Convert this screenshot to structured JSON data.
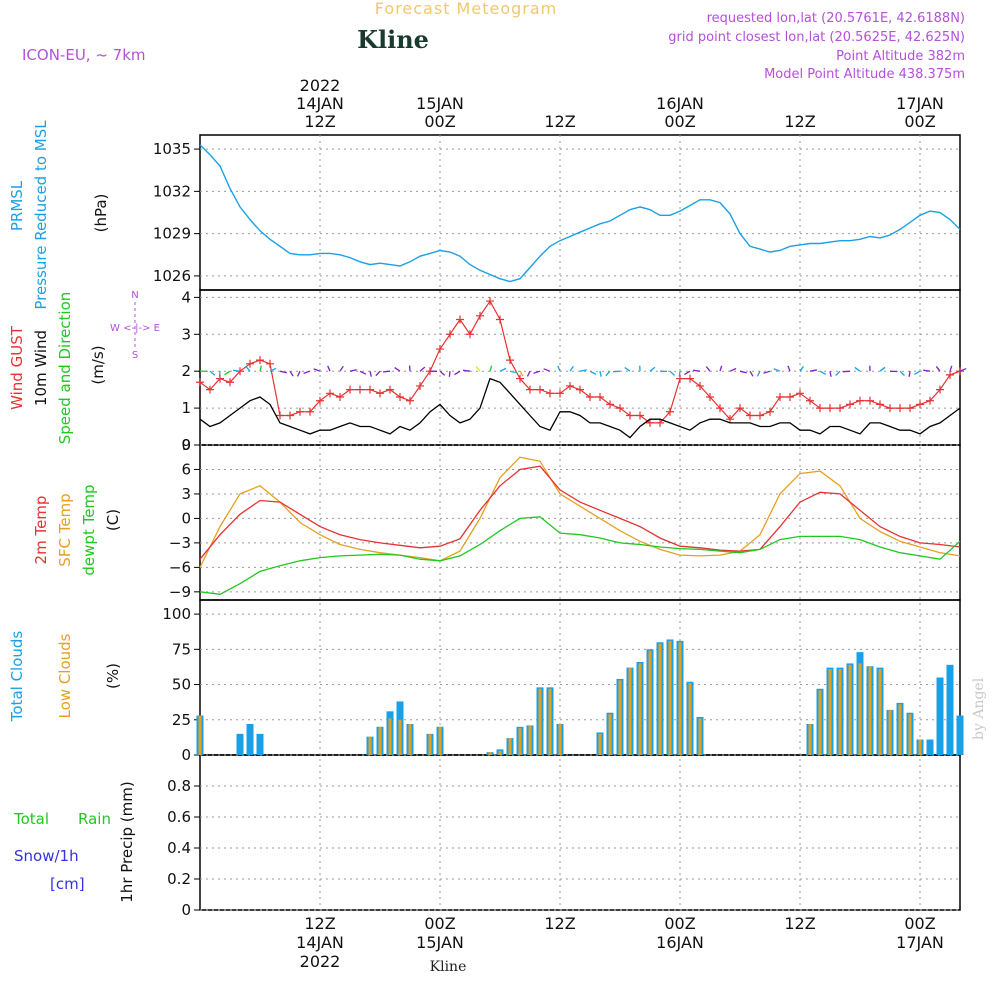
{
  "header": {
    "title": "Forecast Meteogram",
    "location": "Kline",
    "model": "ICON-EU, ~ 7km",
    "requested": "requested lon,lat (20.5761E, 42.6188N)",
    "gridpoint": "grid point closest lon,lat (20.5625E, 42.625N)",
    "point_alt": "Point Altitude 382m",
    "model_alt": "Model Point Altitude 438.375m",
    "bottom_location": "Kline",
    "watermark": "by Angel"
  },
  "colors": {
    "pressure": "#1aa0e6",
    "gust": "#e63232",
    "wind10": "#000000",
    "temp2m": "#e63232",
    "sfctemp": "#e6a020",
    "dewpt": "#20c820",
    "total_clouds": "#1aa0e6",
    "low_clouds": "#e6a020",
    "rain": "#20c820",
    "snow": "#3232e6",
    "arrow_purple": "#8020c8"
  },
  "time_axis": {
    "top_labels": [
      {
        "l1": "2022",
        "l2": "14JAN",
        "l3": "12Z",
        "h": 12
      },
      {
        "l1": "",
        "l2": "15JAN",
        "l3": "00Z",
        "h": 24
      },
      {
        "l1": "",
        "l2": "",
        "l3": "12Z",
        "h": 36
      },
      {
        "l1": "",
        "l2": "16JAN",
        "l3": "00Z",
        "h": 48
      },
      {
        "l1": "",
        "l2": "",
        "l3": "12Z",
        "h": 60
      },
      {
        "l1": "",
        "l2": "17JAN",
        "l3": "00Z",
        "h": 72
      }
    ],
    "bottom_labels": [
      {
        "l1": "12Z",
        "l2": "14JAN",
        "l3": "2022",
        "h": 12
      },
      {
        "l1": "00Z",
        "l2": "15JAN",
        "l3": "",
        "h": 24
      },
      {
        "l1": "12Z",
        "l2": "",
        "l3": "",
        "h": 36
      },
      {
        "l1": "00Z",
        "l2": "16JAN",
        "l3": "",
        "h": 48
      },
      {
        "l1": "12Z",
        "l2": "",
        "l3": "",
        "h": 60
      },
      {
        "l1": "00Z",
        "l2": "17JAN",
        "l3": "",
        "h": 72
      }
    ]
  },
  "panel_labels": {
    "pressure": {
      "l1": "PRMSL",
      "l2": "Pressure Reduced to MSL",
      "unit": "(hPa)"
    },
    "wind": {
      "l1": "Wind GUST",
      "l2": "10m Wind",
      "l3": "Speed and Direction",
      "unit": "(m/s)",
      "compass_n": "N",
      "compass_s": "S",
      "compass_we": "W <-|-> E"
    },
    "temp": {
      "l1": "2m Temp",
      "l2": "SFC Temp",
      "l3": "dewpt Temp",
      "unit": "(C)"
    },
    "clouds": {
      "l1": "Total Clouds",
      "l2": "Low Clouds",
      "unit": "(%)"
    },
    "precip": {
      "l1": "Total",
      "l1b": "Rain",
      "l2": "Snow/1h",
      "l3": "[cm]",
      "unit": "1hr Precip (mm)"
    }
  },
  "chart_data": [
    {
      "type": "line",
      "name": "pressure",
      "ylim": [
        1025,
        1036
      ],
      "yticks": [
        1026,
        1029,
        1032,
        1035
      ],
      "xlim": [
        0,
        76
      ],
      "series": [
        {
          "name": "PRMSL",
          "x": [
            0,
            1,
            2,
            3,
            4,
            5,
            6,
            7,
            8,
            9,
            10,
            11,
            12,
            13,
            14,
            15,
            16,
            17,
            18,
            19,
            20,
            21,
            22,
            23,
            24,
            25,
            26,
            27,
            28,
            29,
            30,
            31,
            32,
            33,
            34,
            35,
            36,
            37,
            38,
            39,
            40,
            41,
            42,
            43,
            44,
            45,
            46,
            47,
            48,
            49,
            50,
            51,
            52,
            53,
            54,
            55,
            56,
            57,
            58,
            59,
            60,
            61,
            62,
            63,
            64,
            65,
            66,
            67,
            68,
            69,
            70,
            71,
            72,
            73,
            74,
            75,
            76
          ],
          "values": [
            1035.3,
            1034.6,
            1033.8,
            1032.2,
            1030.9,
            1030.0,
            1029.2,
            1028.6,
            1028.1,
            1027.6,
            1027.5,
            1027.5,
            1027.6,
            1027.6,
            1027.5,
            1027.3,
            1027.0,
            1026.8,
            1026.9,
            1026.8,
            1026.7,
            1027.0,
            1027.4,
            1027.6,
            1027.8,
            1027.7,
            1027.4,
            1026.8,
            1026.4,
            1026.1,
            1025.8,
            1025.6,
            1025.8,
            1026.6,
            1027.4,
            1028.1,
            1028.5,
            1028.8,
            1029.1,
            1029.4,
            1029.7,
            1029.9,
            1030.3,
            1030.7,
            1030.9,
            1030.7,
            1030.3,
            1030.3,
            1030.6,
            1031.0,
            1031.4,
            1031.4,
            1031.2,
            1030.4,
            1029.0,
            1028.1,
            1027.9,
            1027.7,
            1027.8,
            1028.1,
            1028.2,
            1028.3,
            1028.3,
            1028.4,
            1028.5,
            1028.5,
            1028.6,
            1028.8,
            1028.7,
            1028.9,
            1029.3,
            1029.8,
            1030.3,
            1030.6,
            1030.5,
            1030.0,
            1029.3
          ]
        }
      ]
    },
    {
      "type": "line",
      "name": "wind",
      "ylim": [
        0,
        4.2
      ],
      "yticks": [
        0,
        1,
        2,
        3,
        4
      ],
      "xlim": [
        0,
        76
      ],
      "series": [
        {
          "name": "Wind GUST",
          "x": [
            0,
            1,
            2,
            3,
            4,
            5,
            6,
            7,
            8,
            9,
            10,
            11,
            12,
            13,
            14,
            15,
            16,
            17,
            18,
            19,
            20,
            21,
            22,
            23,
            24,
            25,
            26,
            27,
            28,
            29,
            30,
            31,
            32,
            33,
            34,
            35,
            36,
            37,
            38,
            39,
            40,
            41,
            42,
            43,
            44,
            45,
            46,
            47,
            48,
            49,
            50,
            51,
            52,
            53,
            54,
            55,
            56,
            57,
            58,
            59,
            60,
            61,
            62,
            63,
            64,
            65,
            66,
            67,
            68,
            69,
            70,
            71,
            72,
            73,
            74,
            75,
            76
          ],
          "values": [
            1.7,
            1.5,
            1.8,
            1.7,
            2.0,
            2.2,
            2.3,
            2.2,
            0.8,
            0.8,
            0.9,
            0.9,
            1.2,
            1.4,
            1.3,
            1.5,
            1.5,
            1.5,
            1.4,
            1.5,
            1.3,
            1.2,
            1.6,
            2.0,
            2.6,
            3.0,
            3.4,
            3.0,
            3.5,
            3.9,
            3.4,
            2.3,
            1.8,
            1.5,
            1.5,
            1.4,
            1.4,
            1.6,
            1.5,
            1.3,
            1.3,
            1.1,
            1.0,
            0.8,
            0.8,
            0.6,
            0.6,
            0.9,
            1.8,
            1.8,
            1.6,
            1.3,
            1.0,
            0.7,
            1.0,
            0.8,
            0.8,
            0.9,
            1.3,
            1.3,
            1.4,
            1.2,
            1.0,
            1.0,
            1.0,
            1.1,
            1.2,
            1.2,
            1.1,
            1.0,
            1.0,
            1.0,
            1.1,
            1.2,
            1.5,
            1.9,
            2.0
          ]
        },
        {
          "name": "10m Wind",
          "x": [
            0,
            1,
            2,
            3,
            4,
            5,
            6,
            7,
            8,
            9,
            10,
            11,
            12,
            13,
            14,
            15,
            16,
            17,
            18,
            19,
            20,
            21,
            22,
            23,
            24,
            25,
            26,
            27,
            28,
            29,
            30,
            31,
            32,
            33,
            34,
            35,
            36,
            37,
            38,
            39,
            40,
            41,
            42,
            43,
            44,
            45,
            46,
            47,
            48,
            49,
            50,
            51,
            52,
            53,
            54,
            55,
            56,
            57,
            58,
            59,
            60,
            61,
            62,
            63,
            64,
            65,
            66,
            67,
            68,
            69,
            70,
            71,
            72,
            73,
            74,
            75,
            76
          ],
          "values": [
            0.7,
            0.5,
            0.6,
            0.8,
            1.0,
            1.2,
            1.3,
            1.1,
            0.6,
            0.5,
            0.4,
            0.3,
            0.4,
            0.4,
            0.5,
            0.6,
            0.5,
            0.5,
            0.4,
            0.3,
            0.5,
            0.4,
            0.6,
            0.9,
            1.1,
            0.8,
            0.6,
            0.7,
            1.0,
            1.8,
            1.7,
            1.4,
            1.1,
            0.8,
            0.5,
            0.4,
            0.9,
            0.9,
            0.8,
            0.6,
            0.6,
            0.5,
            0.4,
            0.2,
            0.5,
            0.7,
            0.7,
            0.6,
            0.5,
            0.4,
            0.6,
            0.7,
            0.7,
            0.6,
            0.6,
            0.6,
            0.5,
            0.5,
            0.6,
            0.6,
            0.4,
            0.4,
            0.3,
            0.5,
            0.5,
            0.4,
            0.3,
            0.6,
            0.6,
            0.5,
            0.4,
            0.4,
            0.3,
            0.5,
            0.6,
            0.8,
            1.0
          ]
        }
      ]
    },
    {
      "type": "line",
      "name": "temperature",
      "ylim": [
        -10,
        9
      ],
      "yticks": [
        -9,
        -6,
        -3,
        0,
        3,
        6,
        9
      ],
      "xlim": [
        0,
        76
      ],
      "series": [
        {
          "name": "2m Temp",
          "x": [
            0,
            2,
            4,
            6,
            8,
            10,
            12,
            14,
            16,
            18,
            20,
            22,
            24,
            26,
            28,
            30,
            32,
            34,
            36,
            38,
            40,
            42,
            44,
            46,
            48,
            50,
            52,
            54,
            56,
            58,
            60,
            62,
            64,
            66,
            68,
            70,
            72,
            74,
            76
          ],
          "values": [
            -5,
            -2,
            0.5,
            2.2,
            2,
            0.5,
            -1,
            -2,
            -2.6,
            -3,
            -3.3,
            -3.6,
            -3.4,
            -2.5,
            1,
            4,
            6,
            6.4,
            3.5,
            2,
            1,
            0,
            -1,
            -2.4,
            -3.4,
            -3.6,
            -3.9,
            -4,
            -3.8,
            -1,
            2,
            3.2,
            3,
            1,
            -1,
            -2.2,
            -3,
            -3.2,
            -3.5
          ]
        },
        {
          "name": "SFC Temp",
          "x": [
            0,
            2,
            4,
            6,
            8,
            10,
            12,
            14,
            16,
            18,
            20,
            22,
            24,
            26,
            28,
            30,
            32,
            34,
            36,
            38,
            40,
            42,
            44,
            46,
            48,
            50,
            52,
            54,
            56,
            58,
            60,
            62,
            64,
            66,
            68,
            70,
            72,
            74,
            76
          ],
          "values": [
            -6,
            -1,
            3,
            4,
            2,
            -0.5,
            -2,
            -3.2,
            -3.8,
            -4.2,
            -4.5,
            -4.8,
            -5.2,
            -4,
            0,
            5,
            7.5,
            7,
            3,
            1.5,
            0,
            -1.5,
            -2.8,
            -3.8,
            -4.5,
            -4.6,
            -4.5,
            -4,
            -2,
            3,
            5.5,
            5.8,
            4,
            0,
            -1.6,
            -2.8,
            -3.5,
            -4.2,
            -4.6
          ]
        },
        {
          "name": "dewpt Temp",
          "x": [
            0,
            2,
            4,
            6,
            8,
            10,
            12,
            14,
            16,
            18,
            20,
            22,
            24,
            26,
            28,
            30,
            32,
            34,
            36,
            38,
            40,
            42,
            44,
            46,
            48,
            50,
            52,
            54,
            56,
            58,
            60,
            62,
            64,
            66,
            68,
            70,
            72,
            74,
            76
          ],
          "values": [
            -9,
            -9.3,
            -8,
            -6.5,
            -5.8,
            -5.2,
            -4.8,
            -4.6,
            -4.5,
            -4.4,
            -4.5,
            -5,
            -5.2,
            -4.6,
            -3.2,
            -1.5,
            0,
            0.2,
            -1.8,
            -2,
            -2.4,
            -3,
            -3.2,
            -3.5,
            -3.7,
            -3.8,
            -4,
            -4.2,
            -3.8,
            -2.6,
            -2.2,
            -2.2,
            -2.2,
            -2.6,
            -3.5,
            -4.2,
            -4.6,
            -5,
            -2.8
          ]
        }
      ]
    },
    {
      "type": "bar",
      "name": "clouds",
      "ylim": [
        0,
        110
      ],
      "yticks": [
        0,
        25,
        50,
        75,
        100
      ],
      "xlim": [
        0,
        76
      ],
      "series": [
        {
          "name": "Total Clouds",
          "x": [
            0,
            4,
            5,
            6,
            17,
            18,
            19,
            20,
            21,
            23,
            24,
            29,
            30,
            31,
            32,
            33,
            34,
            35,
            36,
            40,
            41,
            42,
            43,
            44,
            45,
            46,
            47,
            48,
            49,
            50,
            51,
            52,
            61,
            62,
            63,
            64,
            65,
            66,
            67,
            68,
            69,
            70,
            71,
            72,
            73,
            74,
            75,
            76
          ],
          "values": [
            28,
            15,
            22,
            15,
            13,
            20,
            31,
            38,
            22,
            15,
            20,
            2,
            4,
            12,
            20,
            21,
            48,
            48,
            22,
            16,
            30,
            54,
            62,
            66,
            75,
            80,
            82,
            81,
            52,
            27,
            0,
            0,
            22,
            47,
            62,
            62,
            65,
            73,
            63,
            62,
            32,
            37,
            30,
            11,
            11,
            55,
            64,
            28
          ]
        },
        {
          "name": "Low Clouds",
          "x": [
            0,
            17,
            18,
            19,
            20,
            21,
            23,
            24,
            29,
            30,
            31,
            32,
            33,
            34,
            35,
            36,
            40,
            41,
            42,
            43,
            44,
            45,
            46,
            47,
            48,
            49,
            50,
            61,
            62,
            63,
            64,
            65,
            66,
            67,
            68,
            69,
            70,
            71,
            72
          ],
          "values": [
            28,
            13,
            20,
            26,
            25,
            22,
            15,
            20,
            2,
            3,
            12,
            19,
            21,
            47,
            47,
            22,
            15,
            29,
            53,
            62,
            65,
            74,
            79,
            81,
            80,
            51,
            26,
            22,
            46,
            61,
            61,
            64,
            65,
            63,
            61,
            32,
            36,
            29,
            11
          ]
        }
      ]
    },
    {
      "type": "bar",
      "name": "precip",
      "ylim": [
        0,
        1.0
      ],
      "yticks": [
        0,
        0.2,
        0.4,
        0.6,
        0.8
      ],
      "xlim": [
        0,
        76
      ],
      "series": []
    }
  ]
}
